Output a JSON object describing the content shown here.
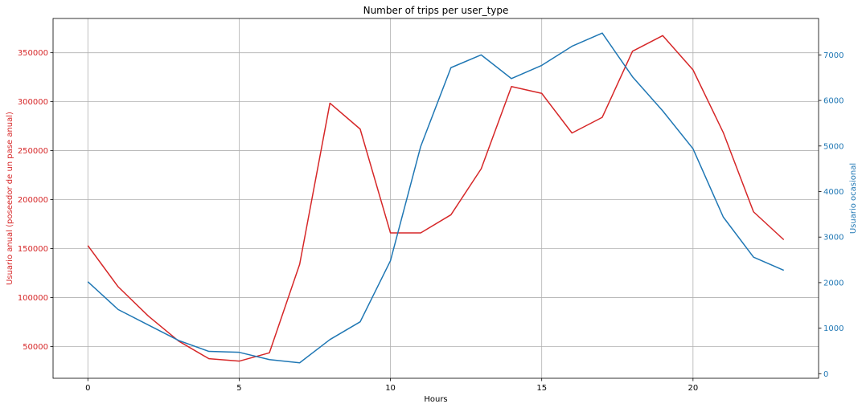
{
  "colors": {
    "left_series": "#d62728",
    "right_series": "#1f77b4",
    "grid": "#b0b0b0",
    "axis": "#000000"
  },
  "chart_data": {
    "type": "line",
    "title": "Number of trips per user_type",
    "xlabel": "Hours",
    "ylabel_left": "Usuario anual (poseedor de un pase anual)",
    "ylabel_right": "Usuario ocasional",
    "x": [
      0,
      1,
      2,
      3,
      4,
      5,
      6,
      7,
      8,
      9,
      10,
      11,
      12,
      13,
      14,
      15,
      16,
      17,
      18,
      19,
      20,
      21,
      22,
      23
    ],
    "x_ticks": [
      0,
      5,
      10,
      15,
      20
    ],
    "x_tick_labels": [
      "0",
      "5",
      "10",
      "15",
      "20"
    ],
    "xlim": [
      -1.15,
      24.15
    ],
    "y_left_ticks": [
      50000,
      100000,
      150000,
      200000,
      250000,
      300000,
      350000
    ],
    "y_left_tick_labels": [
      "50000",
      "100000",
      "150000",
      "200000",
      "250000",
      "300000",
      "350000"
    ],
    "ylim_left": [
      17500,
      385000
    ],
    "y_right_ticks": [
      0,
      1000,
      2000,
      3000,
      4000,
      5000,
      6000,
      7000
    ],
    "y_right_tick_labels": [
      "0",
      "1000",
      "2000",
      "3000",
      "4000",
      "5000",
      "6000",
      "7000"
    ],
    "ylim_right": [
      -100,
      7800
    ],
    "grid": true,
    "series": [
      {
        "axis": "left",
        "values": [
          153000,
          111000,
          81000,
          55500,
          37500,
          35000,
          43500,
          134000,
          298500,
          272000,
          166000,
          166000,
          184500,
          231500,
          315500,
          308500,
          268000,
          284000,
          351500,
          367500,
          332500,
          268500,
          187500,
          159000
        ]
      },
      {
        "axis": "right",
        "values": [
          2020,
          1410,
          1070,
          730,
          490,
          470,
          310,
          240,
          750,
          1140,
          2480,
          4990,
          6720,
          7000,
          6480,
          6770,
          7190,
          7480,
          6520,
          5770,
          4940,
          3440,
          2560,
          2270
        ]
      }
    ]
  }
}
